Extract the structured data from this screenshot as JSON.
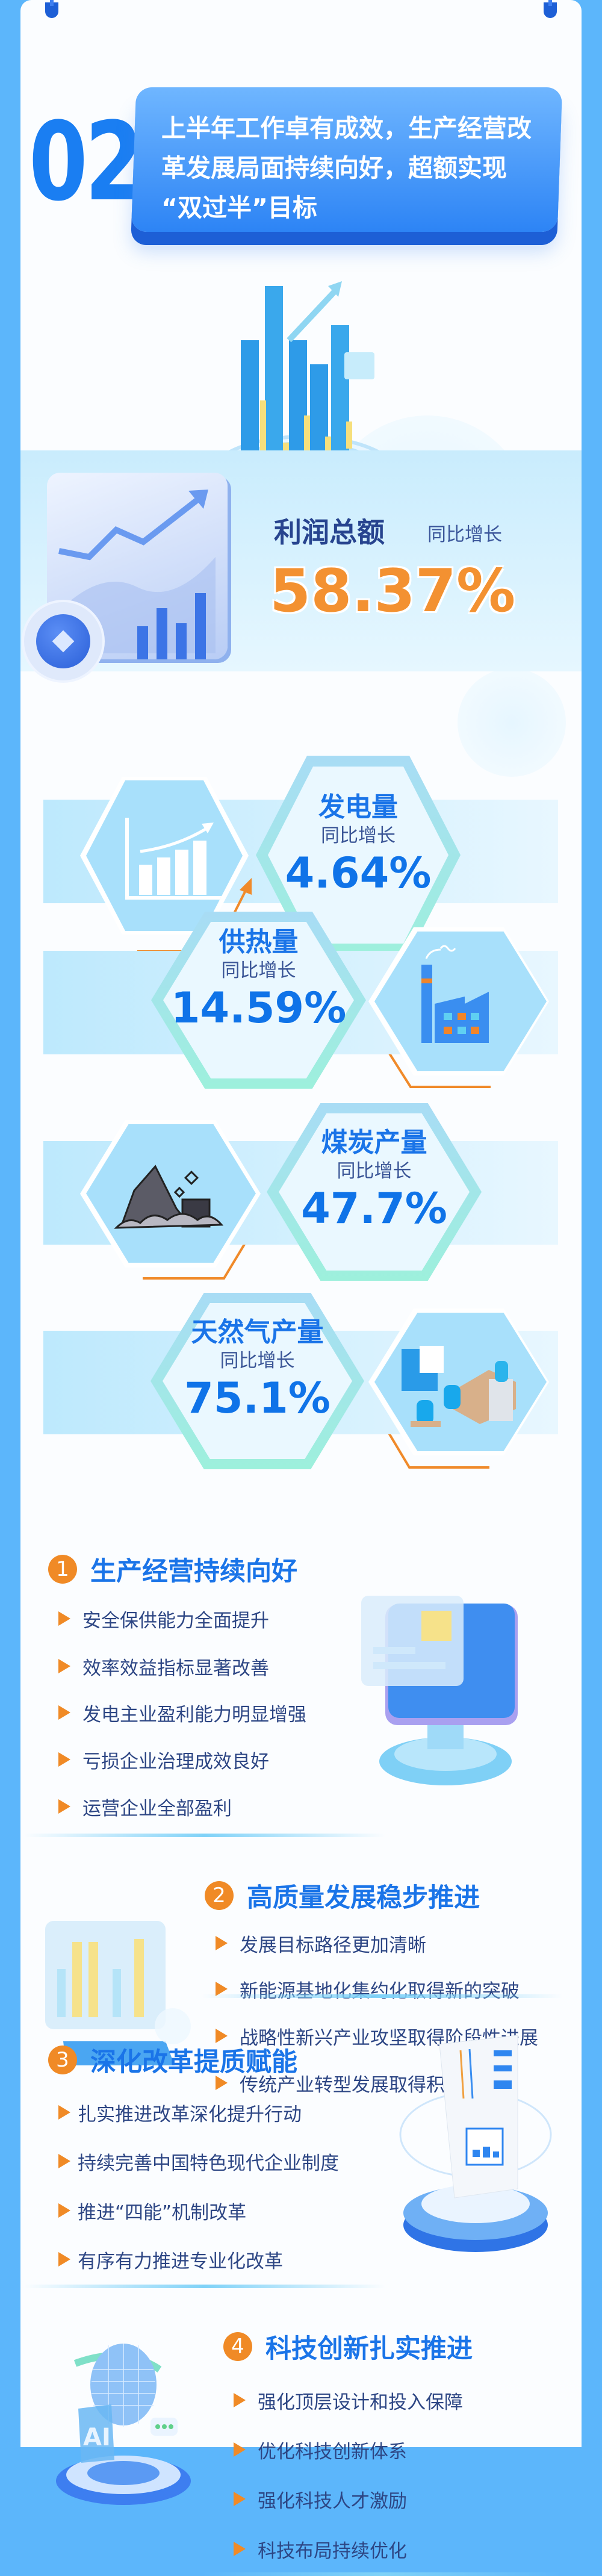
{
  "header": {
    "number": "02",
    "title_lines": [
      "上半年工作卓有成效，生产经营改",
      "革发展局面持续向好，超额实现",
      "“双过半”目标"
    ]
  },
  "profit": {
    "title": "利润总额",
    "sub": "同比增长",
    "value": "58.37%"
  },
  "stats": [
    {
      "title": "发电量",
      "sub": "同比增长",
      "value": "4.64%",
      "icon": "bar-chart-icon"
    },
    {
      "title": "供热量",
      "sub": "同比增长",
      "value": "14.59%",
      "icon": "factory-icon"
    },
    {
      "title": "煤炭产量",
      "sub": "同比增长",
      "value": "47.7%",
      "icon": "coal-icon"
    },
    {
      "title": "天然气产量",
      "sub": "同比增长",
      "value": "75.1%",
      "icon": "gas-plant-icon"
    }
  ],
  "sections": [
    {
      "num": "1",
      "title": "生产经营持续向好",
      "items": [
        "安全保供能力全面提升",
        "效率效益指标显著改善",
        "发电主业盈利能力明显增强",
        "亏损企业治理成效良好",
        "运营企业全部盈利"
      ]
    },
    {
      "num": "2",
      "title": "高质量发展稳步推进",
      "items": [
        "发展目标路径更加清晰",
        "新能源基地化集约化取得新的突破",
        "战略性新兴产业攻坚取得阶段性进展",
        "传统产业转型发展取得积极成效"
      ]
    },
    {
      "num": "3",
      "title": "深化改革提质赋能",
      "items": [
        "扎实推进改革深化提升行动",
        "持续完善中国特色现代企业制度",
        "推进“四能”机制改革",
        "有序有力推进专业化改革"
      ]
    },
    {
      "num": "4",
      "title": "科技创新扎实推进",
      "items": [
        "强化顶层设计和投入保障",
        "优化科技创新体系",
        "强化科技人才激励",
        "科技布局持续优化"
      ]
    }
  ],
  "illustrations": {
    "ai_label": "AI"
  },
  "colors": {
    "frame": "#5cb6fb",
    "accent_blue": "#1a74e8",
    "accent_orange": "#f08a26",
    "navy": "#27448f"
  }
}
